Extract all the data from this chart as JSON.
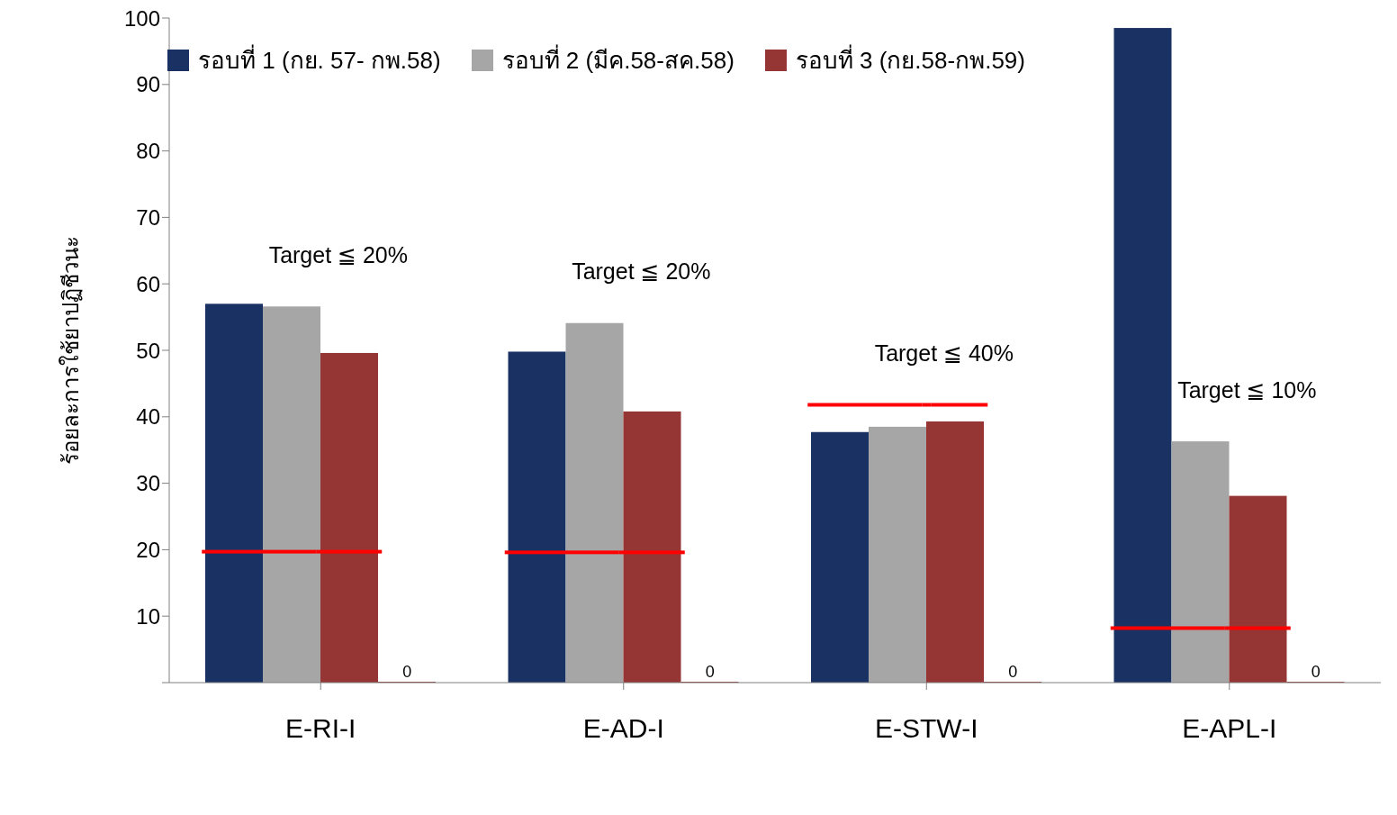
{
  "chart_data": {
    "type": "bar",
    "categories": [
      "E-RI-I",
      "E-AD-I",
      "E-STW-I",
      "E-APL-I"
    ],
    "ylabel": "ร้อยละการใช้ยาปฏิชีวนะ",
    "ylim": [
      0,
      100
    ],
    "yticks": [
      {
        "value": 0,
        "label": null
      },
      10,
      20,
      30,
      40,
      50,
      60,
      70,
      80,
      90,
      100
    ],
    "grid": false,
    "legend": "top left",
    "series": [
      {
        "name": "รอบที่ 1 (กย. 57- กพ.58)",
        "color": "#1a3263",
        "values": [
          57.0,
          49.8,
          37.7,
          98.5
        ]
      },
      {
        "name": "รอบที่ 2 (มีค.58-สค.58)",
        "color": "#a6a6a6",
        "values": [
          56.6,
          54.1,
          38.5,
          36.3
        ]
      },
      {
        "name": "รอบที่ 3 (กย.58-กพ.59)",
        "color": "#963634",
        "values": [
          49.6,
          40.8,
          39.3,
          28.1
        ]
      },
      {
        "color": "#963634",
        "values": [
          0,
          0,
          0,
          0
        ],
        "value_labels": [
          "0",
          "0",
          "0",
          "0"
        ]
      },
      {
        "type": "scatter",
        "color": "#ff0000",
        "values": [
          19.7,
          19.6,
          41.8,
          8.2
        ]
      }
    ],
    "annotations": [
      "Target ≦ 20%",
      "Target ≦ 20%",
      "Target ≦ 40%",
      "Target ≦ 10%"
    ]
  }
}
